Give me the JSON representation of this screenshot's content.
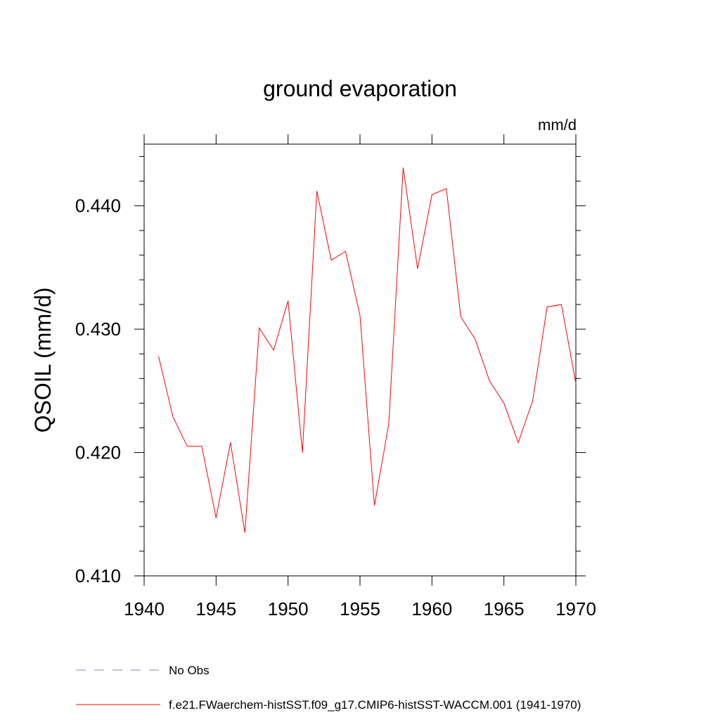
{
  "chart_data": {
    "type": "line",
    "title": "ground evaporation",
    "units_label": "mm/d",
    "ylabel": "QSOIL  (mm/d)",
    "xlabel": "",
    "xlim": [
      1940,
      1970
    ],
    "ylim": [
      0.41,
      0.445
    ],
    "x_ticks": [
      "1940",
      "1945",
      "1950",
      "1955",
      "1960",
      "1965",
      "1970"
    ],
    "y_ticks": [
      "0.410",
      "0.420",
      "0.430",
      "0.440"
    ],
    "grid": false,
    "legend_position": "bottom",
    "series": [
      {
        "name": "f.e21.FWaerchem-histSST.f09_g17.CMIP6-histSST-WACCM.001 (1941-1970)",
        "color": "#ff0000",
        "line_style": "solid",
        "x": [
          1941,
          1942,
          1943,
          1944,
          1945,
          1946,
          1947,
          1948,
          1949,
          1950,
          1951,
          1952,
          1953,
          1954,
          1955,
          1956,
          1957,
          1958,
          1959,
          1960,
          1961,
          1962,
          1963,
          1964,
          1965,
          1966,
          1967,
          1968,
          1969,
          1970
        ],
        "values": [
          0.4278,
          0.4229,
          0.4205,
          0.4205,
          0.4147,
          0.4208,
          0.4135,
          0.4301,
          0.4283,
          0.4323,
          0.42,
          0.4412,
          0.4356,
          0.4363,
          0.4311,
          0.4157,
          0.4223,
          0.4431,
          0.4349,
          0.4409,
          0.4414,
          0.431,
          0.4292,
          0.4258,
          0.424,
          0.4208,
          0.4242,
          0.4318,
          0.432,
          0.4256
        ]
      },
      {
        "name": "No Obs",
        "color": "#8b7fd0",
        "line_style": "dashed",
        "x": [],
        "values": []
      }
    ]
  }
}
